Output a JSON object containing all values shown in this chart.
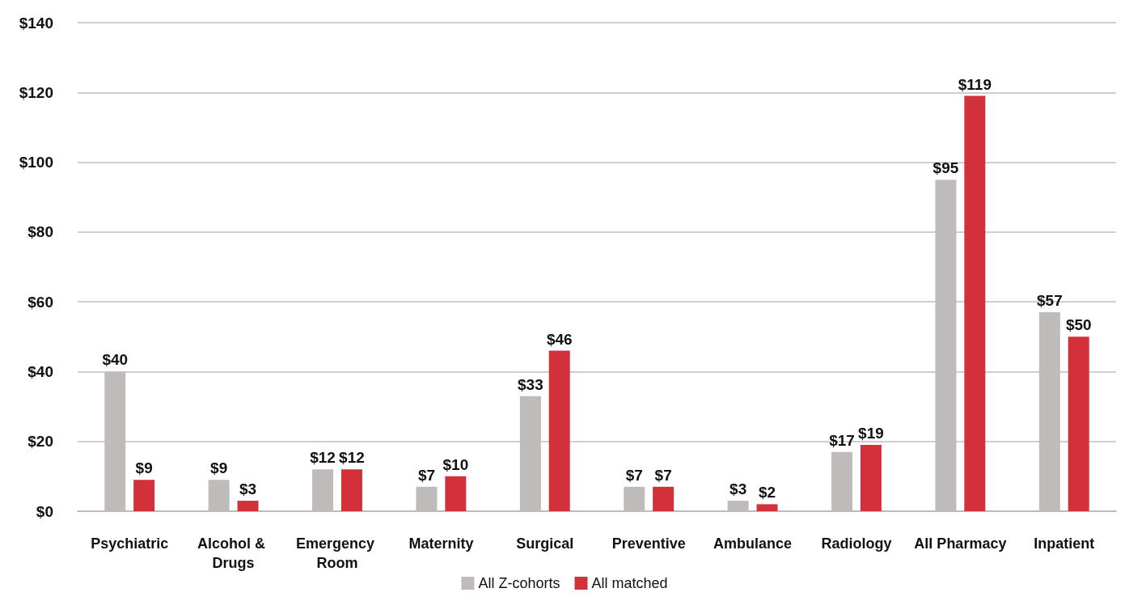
{
  "chart_data": {
    "type": "bar",
    "categories": [
      "Psychiatric",
      "Alcohol & Drugs",
      "Emergency Room",
      "Maternity",
      "Surgical",
      "Preventive",
      "Ambulance",
      "Radiology",
      "All Pharmacy",
      "Inpatient"
    ],
    "series": [
      {
        "name": "All Z-cohorts",
        "color": "#bfbbba",
        "values": [
          40,
          9,
          12,
          7,
          33,
          7,
          3,
          17,
          95,
          57
        ],
        "value_labels": [
          "$40",
          "$9",
          "$12",
          "$7",
          "$33",
          "$7",
          "$3",
          "$17",
          "$95",
          "$57"
        ]
      },
      {
        "name": "All matched",
        "color": "#d3313a",
        "values": [
          9,
          3,
          12,
          10,
          46,
          7,
          2,
          19,
          119,
          50
        ],
        "value_labels": [
          "$9",
          "$3",
          "$12",
          "$10",
          "$46",
          "$7",
          "$2",
          "$19",
          "$119",
          "$50"
        ]
      }
    ],
    "ylim": [
      0,
      140
    ],
    "yticks": [
      {
        "value": 0,
        "label": "$0"
      },
      {
        "value": 20,
        "label": "$20"
      },
      {
        "value": 40,
        "label": "$40"
      },
      {
        "value": 60,
        "label": "$60"
      },
      {
        "value": 80,
        "label": "$80"
      },
      {
        "value": 100,
        "label": "$100"
      },
      {
        "value": 120,
        "label": "$120"
      },
      {
        "value": 140,
        "label": "$140"
      }
    ],
    "grid": "y",
    "legend": "bottom"
  }
}
